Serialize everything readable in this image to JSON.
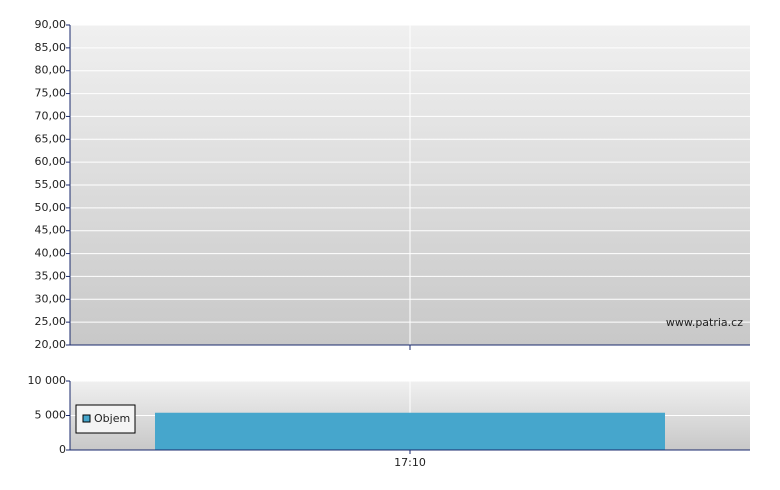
{
  "chart_data": [
    {
      "type": "line",
      "annotation": "www.patria.cz",
      "ylim": [
        20,
        90
      ],
      "yticks": [
        {
          "value": 20,
          "label": "20,00"
        },
        {
          "value": 25,
          "label": "25,00"
        },
        {
          "value": 30,
          "label": "30,00"
        },
        {
          "value": 35,
          "label": "35,00"
        },
        {
          "value": 40,
          "label": "40,00"
        },
        {
          "value": 45,
          "label": "45,00"
        },
        {
          "value": 50,
          "label": "50,00"
        },
        {
          "value": 55,
          "label": "55,00"
        },
        {
          "value": 60,
          "label": "60,00"
        },
        {
          "value": 65,
          "label": "65,00"
        },
        {
          "value": 70,
          "label": "70,00"
        },
        {
          "value": 75,
          "label": "75,00"
        },
        {
          "value": 80,
          "label": "80,00"
        },
        {
          "value": 85,
          "label": "85,00"
        },
        {
          "value": 90,
          "label": "90,00"
        }
      ],
      "grid": true
    },
    {
      "type": "bar",
      "categories": [
        "17:10"
      ],
      "series": [
        {
          "name": "Objem",
          "color": "#46a6cc",
          "values": [
            5400
          ]
        }
      ],
      "ylim": [
        0,
        10000
      ],
      "yticks": [
        0,
        {
          "value": 5000,
          "label": "5 000"
        },
        {
          "value": 10000,
          "label": "10 000"
        }
      ],
      "grid": true,
      "legend": "left"
    }
  ]
}
